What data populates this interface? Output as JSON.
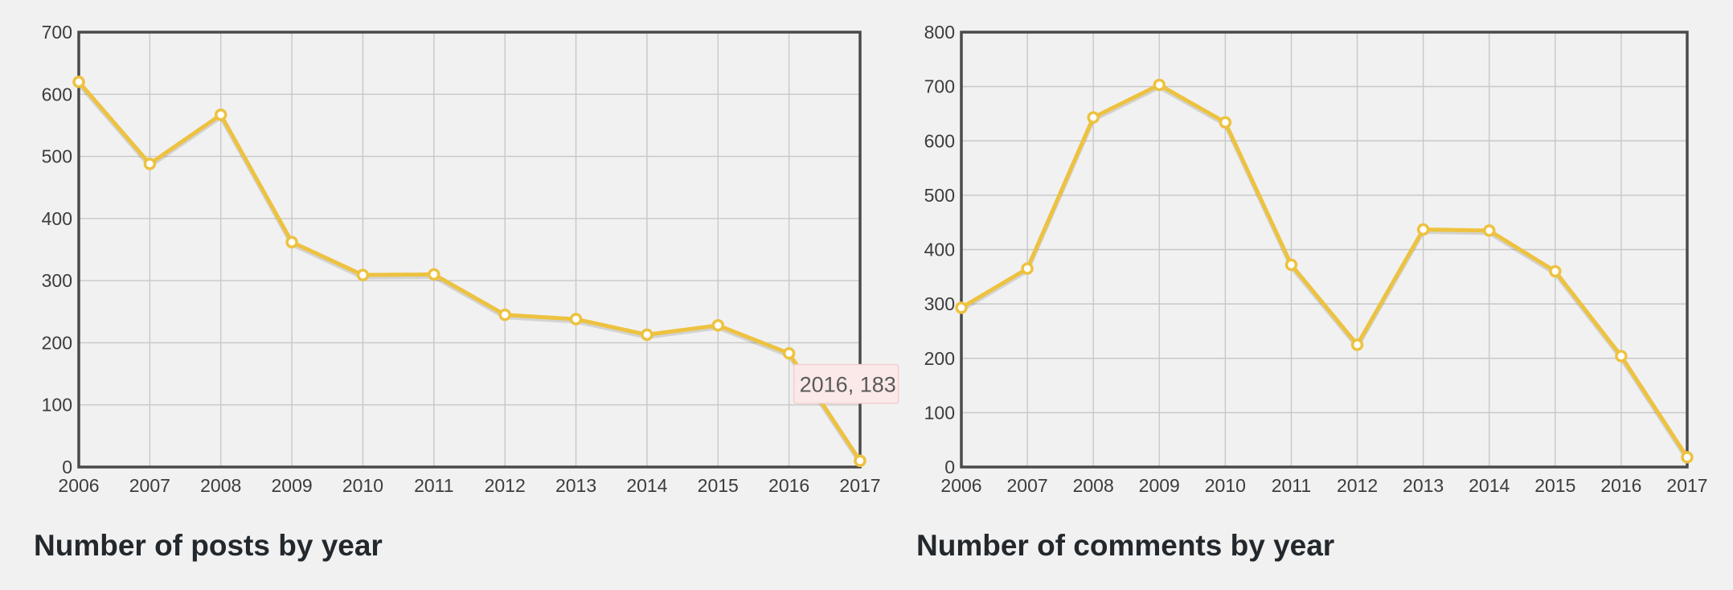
{
  "chart_data": [
    {
      "type": "line",
      "title": "Number of posts by year",
      "x": [
        "2006",
        "2007",
        "2008",
        "2009",
        "2010",
        "2011",
        "2012",
        "2013",
        "2014",
        "2015",
        "2016",
        "2017"
      ],
      "series": [
        {
          "values": [
            620,
            488,
            567,
            362,
            309,
            310,
            245,
            238,
            213,
            228,
            183,
            10
          ]
        }
      ],
      "ylim": [
        0,
        700
      ],
      "yticks": [
        0,
        100,
        200,
        300,
        400,
        500,
        600,
        700
      ],
      "grid": true,
      "color": "#edc240",
      "tooltip": {
        "text": "2016, 183",
        "index": 10
      }
    },
    {
      "type": "line",
      "title": "Number of comments by year",
      "x": [
        "2006",
        "2007",
        "2008",
        "2009",
        "2010",
        "2011",
        "2012",
        "2013",
        "2014",
        "2015",
        "2016",
        "2017"
      ],
      "series": [
        {
          "values": [
            293,
            365,
            643,
            703,
            634,
            372,
            225,
            437,
            435,
            360,
            204,
            18
          ]
        }
      ],
      "ylim": [
        0,
        800
      ],
      "yticks": [
        0,
        100,
        200,
        300,
        400,
        500,
        600,
        700,
        800
      ],
      "grid": true,
      "color": "#edc240"
    }
  ]
}
